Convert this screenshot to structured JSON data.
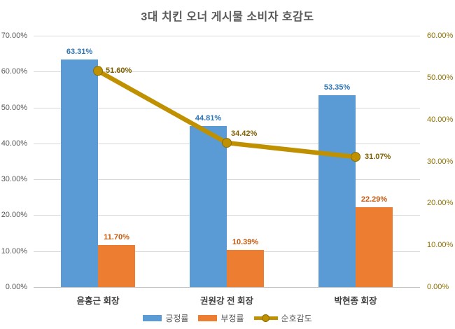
{
  "title": "3대 치킨 오너 게시물 소비자 호감도",
  "colors": {
    "positive_bar": "#5B9BD5",
    "negative_bar": "#ED7D31",
    "trend_line": "#BF9000",
    "positive_label": "#2E75B6",
    "negative_label": "#C55A11",
    "trend_label": "#7F6000",
    "left_axis_text": "#595959",
    "right_axis_text": "#8F7000",
    "gridline": "#D9D9D9",
    "title_text": "#595959",
    "category_text": "#404040"
  },
  "chart_data": {
    "type": "bar",
    "subtype": "combo-bar-line-dual-axis",
    "title": "3대 치킨 오너 게시물 소비자 호감도",
    "categories": [
      "윤홍근 회장",
      "권원강 전 회장",
      "박현종 회장"
    ],
    "series": [
      {
        "name": "긍정률",
        "type": "bar",
        "axis": "left",
        "color": "#5B9BD5",
        "label_color": "#2E75B6",
        "values": [
          63.31,
          44.81,
          53.35
        ],
        "data_labels": [
          "63.31%",
          "44.81%",
          "53.35%"
        ]
      },
      {
        "name": "부정률",
        "type": "bar",
        "axis": "left",
        "color": "#ED7D31",
        "label_color": "#C55A11",
        "values": [
          11.7,
          10.39,
          22.29
        ],
        "data_labels": [
          "11.70%",
          "10.39%",
          "22.29%"
        ]
      },
      {
        "name": "순호감도",
        "type": "line",
        "axis": "right",
        "color": "#BF9000",
        "label_color": "#7F6000",
        "values": [
          51.6,
          34.42,
          31.07
        ],
        "data_labels": [
          "51.60%",
          "34.42%",
          "31.07%"
        ]
      }
    ],
    "left_axis": {
      "min": 0,
      "max": 70,
      "step": 10,
      "tick_labels_top_to_bottom": [
        "70.00%",
        "60.00%",
        "50.00%",
        "40.00%",
        "30.00%",
        "20.00%",
        "10.00%",
        "0.00%"
      ]
    },
    "right_axis": {
      "min": 0,
      "max": 60,
      "step": 10,
      "tick_labels_top_to_bottom": [
        "60.00%",
        "50.00%",
        "40.00%",
        "30.00%",
        "20.00%",
        "10.00%",
        "0.00%"
      ]
    },
    "legend": {
      "position": "bottom",
      "entries": [
        "긍정률",
        "부정률",
        "순호감도"
      ]
    },
    "grid": true,
    "xlabel": "",
    "ylabel": ""
  }
}
